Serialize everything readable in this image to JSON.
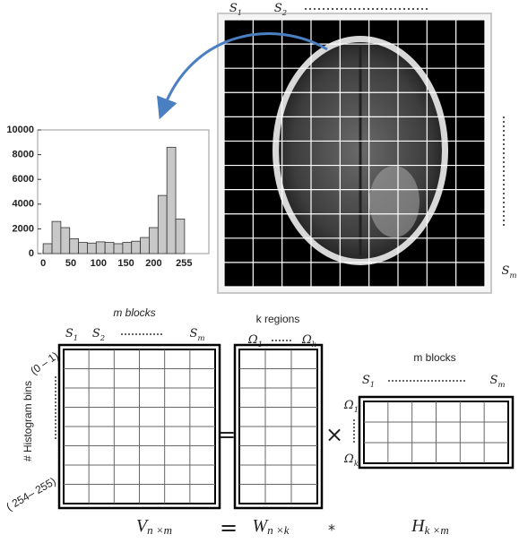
{
  "chart_data": {
    "type": "histogram",
    "bins": [
      0,
      16,
      32,
      48,
      64,
      80,
      96,
      112,
      128,
      144,
      160,
      176,
      192,
      208,
      224,
      240,
      256
    ],
    "values": [
      800,
      2600,
      2100,
      1200,
      900,
      850,
      950,
      900,
      800,
      900,
      1000,
      1300,
      2100,
      4700,
      8600,
      2800
    ],
    "color": "#c8c8c8",
    "xlim": [
      -10,
      300
    ],
    "ylim": [
      0,
      10000
    ],
    "xticks": [
      0,
      50,
      100,
      150,
      200,
      255
    ],
    "yticks": [
      0,
      2000,
      4000,
      6000,
      8000,
      10000
    ]
  },
  "image_panel": {
    "top_labels": [
      {
        "base": "S",
        "sub": "1"
      },
      {
        "base": "S",
        "sub": "2"
      }
    ],
    "last_label": {
      "base": "S",
      "sub": "m"
    }
  },
  "matrices": {
    "V": {
      "header": "m blocks",
      "cols": [
        {
          "base": "S",
          "sub": "1"
        },
        {
          "base": "S",
          "sub": "2"
        },
        {
          "base": "S",
          "sub": "m"
        }
      ],
      "row_axis": "# Histogram bins",
      "row_first": "(0 – 1)",
      "row_last": "( 254– 255)",
      "symbol": {
        "base": "V",
        "sub": "n ×m"
      }
    },
    "W": {
      "header": "k regions",
      "cols": [
        {
          "base": "Ω",
          "sub": "1"
        },
        {
          "base": "Ω",
          "sub": "k"
        }
      ],
      "symbol": {
        "base": "W",
        "sub": "n ×k"
      }
    },
    "H": {
      "header": "m blocks",
      "cols": [
        {
          "base": "S",
          "sub": "1"
        },
        {
          "base": "S",
          "sub": "m"
        }
      ],
      "rows": [
        {
          "base": "Ω",
          "sub": "1"
        },
        {
          "base": "Ω",
          "sub": "k"
        }
      ],
      "symbol": {
        "base": "H",
        "sub": "k ×m"
      }
    },
    "ops": {
      "eq1": "=",
      "times": "×",
      "eq2": "=",
      "star": "*"
    }
  }
}
